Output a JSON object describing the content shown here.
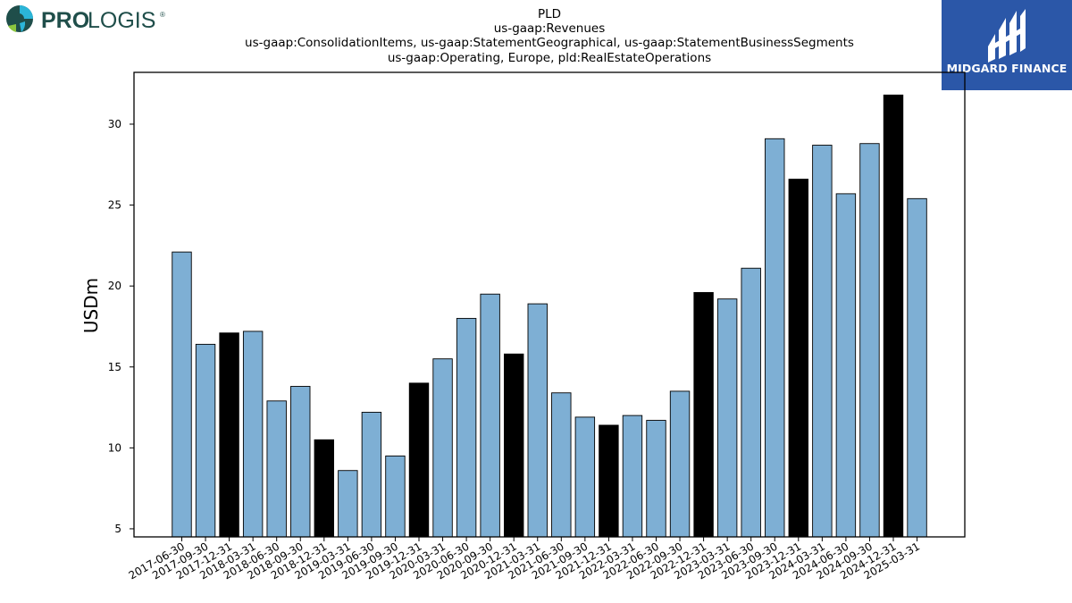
{
  "logos": {
    "left_text_bold": "PRO",
    "left_text_rest": "LOGIS",
    "left_reg": "®",
    "right_text": "MIDGARD FINANCE",
    "left_color": "#1f4e4a",
    "right_bg": "#2b57a8"
  },
  "colors": {
    "bar_blue": "#7eafd4",
    "bar_black": "#000000"
  },
  "chart_data": {
    "type": "bar",
    "title_lines": [
      "PLD",
      "us-gaap:Revenues",
      "us-gaap:ConsolidationItems, us-gaap:StatementGeographical, us-gaap:StatementBusinessSegments",
      "us-gaap:Operating, Europe, pld:RealEstateOperations"
    ],
    "xlabel": "",
    "ylabel": "USDm",
    "ylim": [
      4.5,
      33.2
    ],
    "yticks": [
      5,
      10,
      15,
      20,
      25,
      30
    ],
    "grid": false,
    "categories": [
      "2017-06-30",
      "2017-09-30",
      "2017-12-31",
      "2018-03-31",
      "2018-06-30",
      "2018-09-30",
      "2018-12-31",
      "2019-03-31",
      "2019-06-30",
      "2019-09-30",
      "2019-12-31",
      "2020-03-31",
      "2020-06-30",
      "2020-09-30",
      "2020-12-31",
      "2021-03-31",
      "2021-06-30",
      "2021-09-30",
      "2021-12-31",
      "2022-03-31",
      "2022-06-30",
      "2022-09-30",
      "2022-12-31",
      "2023-03-31",
      "2023-06-30",
      "2023-09-30",
      "2023-12-31",
      "2024-03-31",
      "2024-06-30",
      "2024-09-30",
      "2024-12-31",
      "2025-03-31"
    ],
    "values": [
      22.1,
      16.4,
      17.1,
      17.2,
      12.9,
      13.8,
      10.5,
      8.6,
      12.2,
      9.5,
      14.0,
      15.5,
      18.0,
      19.5,
      15.8,
      18.9,
      13.4,
      11.9,
      11.4,
      12.0,
      11.7,
      13.5,
      19.6,
      19.2,
      21.1,
      29.1,
      26.6,
      28.7,
      25.7,
      28.8,
      31.8,
      25.4
    ],
    "highlight": [
      false,
      false,
      true,
      false,
      false,
      false,
      true,
      false,
      false,
      false,
      true,
      false,
      false,
      false,
      true,
      false,
      false,
      false,
      true,
      false,
      false,
      false,
      true,
      false,
      false,
      false,
      true,
      false,
      false,
      false,
      true,
      false
    ]
  }
}
